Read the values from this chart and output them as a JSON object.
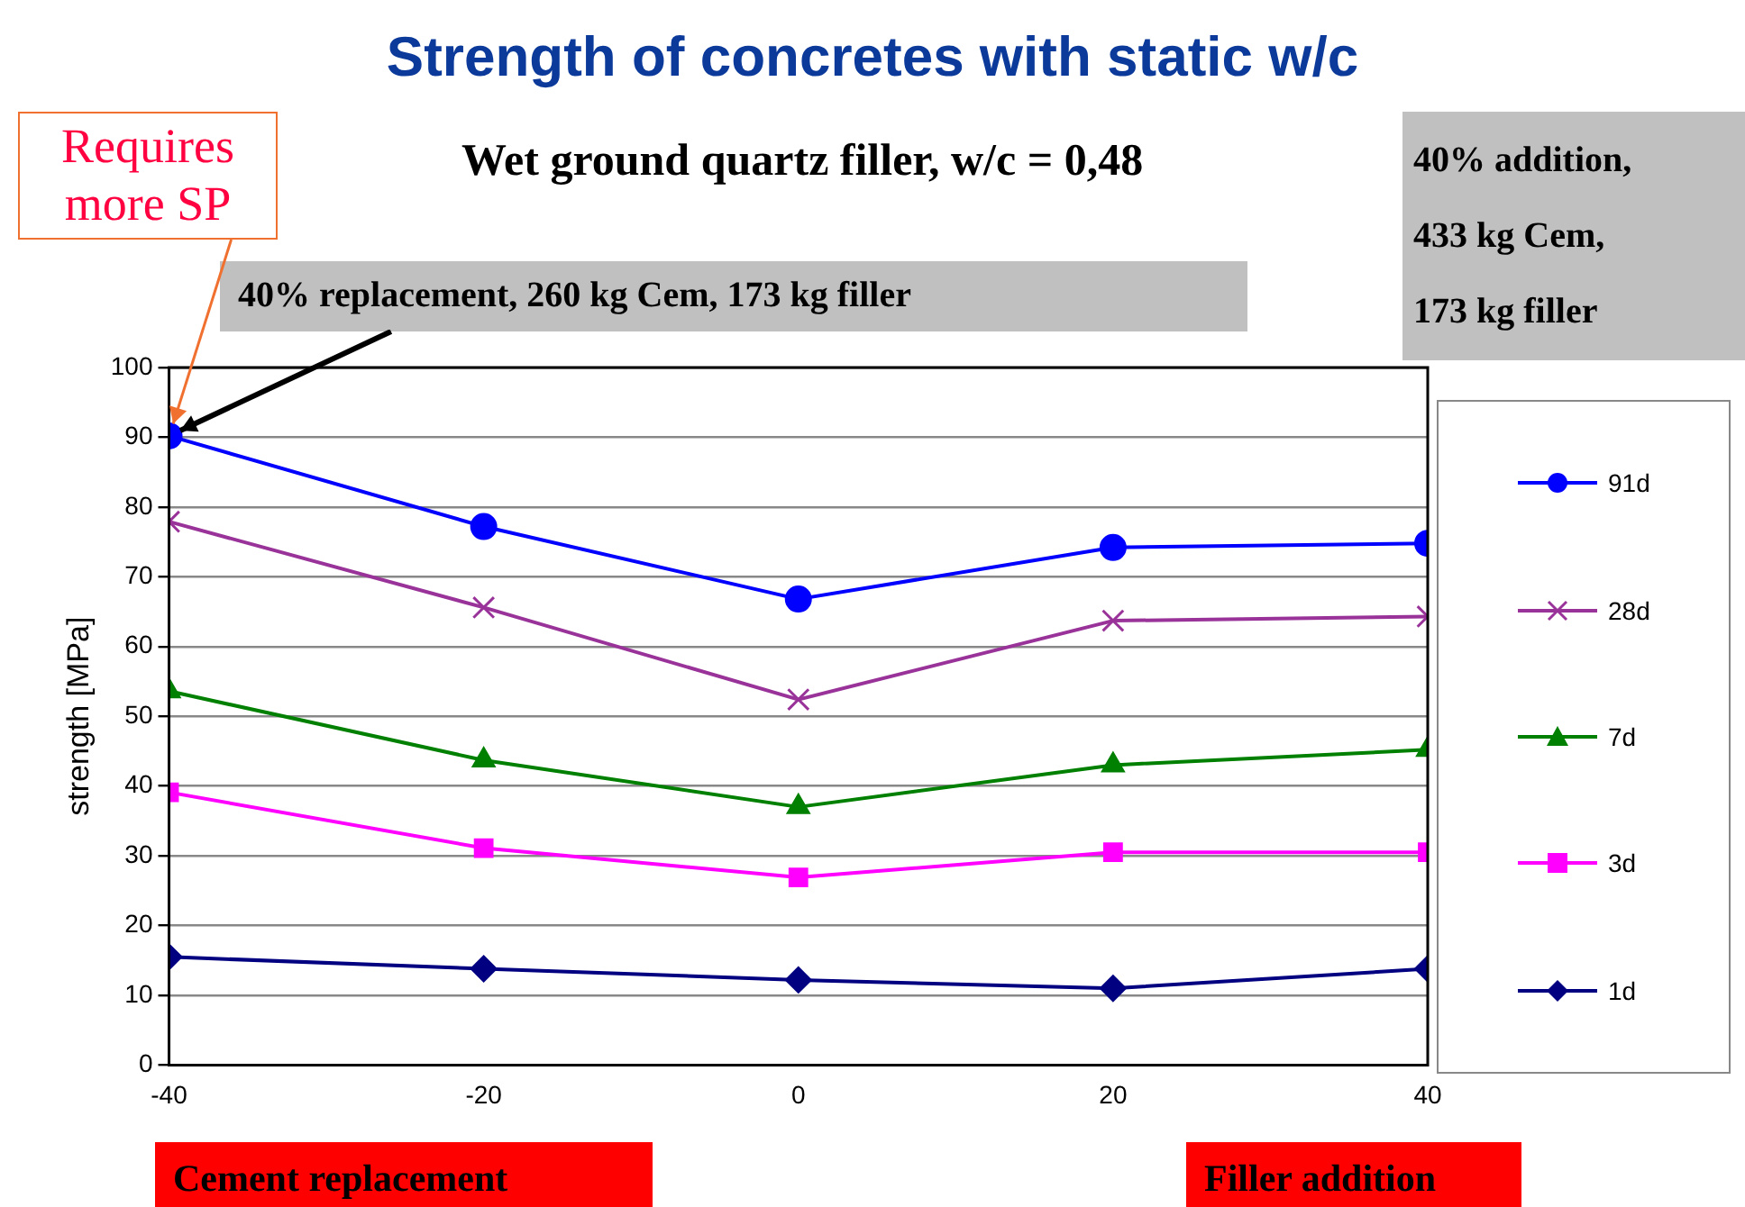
{
  "chart_data": {
    "type": "line",
    "title": "Strength of concretes with static w/c",
    "subtitle": "Wet ground quartz filler, w/c = 0,48",
    "ylabel": "strength [MPa]",
    "x": [
      -40,
      -20,
      0,
      20,
      40
    ],
    "xlim": [
      -40,
      40
    ],
    "xticks": [
      -40,
      -20,
      0,
      20,
      40
    ],
    "ylim": [
      0,
      100
    ],
    "yticks": [
      0,
      10,
      20,
      30,
      40,
      50,
      60,
      70,
      80,
      90,
      100
    ],
    "grid": "y",
    "legend": "right",
    "line_style": "solid",
    "series": [
      {
        "name": "91d",
        "color": "#0000ff",
        "marker": "circle",
        "values": [
          90.2,
          77.2,
          66.8,
          74.2,
          74.8
        ]
      },
      {
        "name": "28d",
        "color": "#993399",
        "marker": "cross",
        "values": [
          77.9,
          65.6,
          52.4,
          63.7,
          64.3
        ]
      },
      {
        "name": "7d",
        "color": "#008000",
        "marker": "triangle",
        "values": [
          53.6,
          43.7,
          37,
          43,
          45.2
        ]
      },
      {
        "name": "3d",
        "color": "#ff00ff",
        "marker": "square",
        "values": [
          39.1,
          31.1,
          26.9,
          30.5,
          30.5
        ]
      },
      {
        "name": "1d",
        "color": "#000080",
        "marker": "diamond",
        "values": [
          15.5,
          13.8,
          12.2,
          11,
          13.8
        ]
      }
    ],
    "annotations": [
      {
        "text": "Requires more SP",
        "x": -40,
        "y": 90.2
      },
      {
        "text": "40% replacement, 260 kg Cem, 173 kg filler",
        "x": -40,
        "y": 90.2
      },
      "40% addition, 433 kg Cem, 173 kg filler",
      "Cement replacement",
      "Filler addition"
    ]
  }
}
